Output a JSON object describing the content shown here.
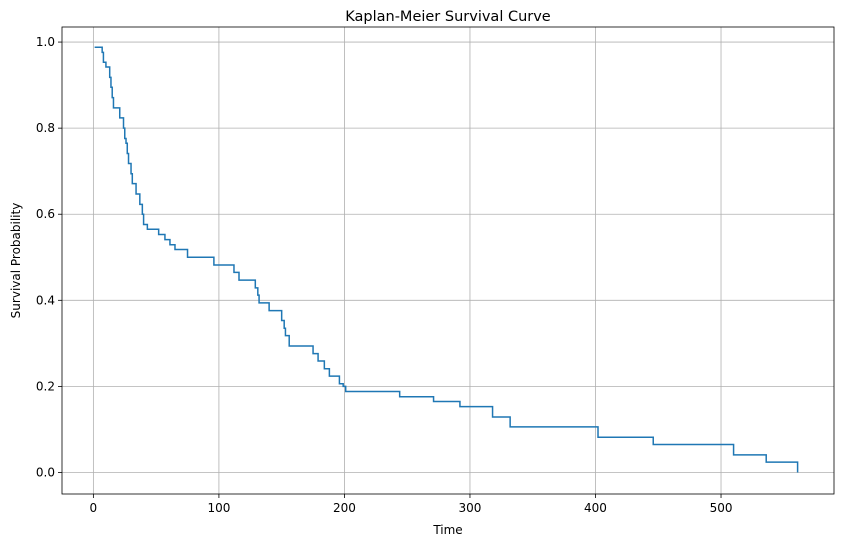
{
  "chart_data": {
    "type": "line",
    "step": "post",
    "title": "Kaplan-Meier Survival Curve",
    "xlabel": "Time",
    "ylabel": "Survival Probability",
    "xlim": [
      -25,
      590
    ],
    "ylim": [
      -0.05,
      1.035
    ],
    "xticks": [
      0,
      100,
      200,
      300,
      400,
      500
    ],
    "yticks": [
      0.0,
      0.2,
      0.4,
      0.6,
      0.8,
      1.0
    ],
    "xtick_labels": [
      "0",
      "100",
      "200",
      "300",
      "400",
      "500"
    ],
    "ytick_labels": [
      "0.0",
      "0.2",
      "0.4",
      "0.6",
      "0.8",
      "1.0"
    ],
    "grid": true,
    "series": [
      {
        "color": "#1f77b4",
        "x": [
          1,
          7,
          8,
          10,
          13,
          14,
          15,
          16,
          21,
          24,
          25,
          26,
          27,
          28,
          30,
          31,
          34,
          37,
          39,
          40,
          43,
          52,
          57,
          61,
          65,
          75,
          96,
          112,
          116,
          129,
          131,
          132,
          140,
          150,
          152,
          153,
          156,
          175,
          179,
          184,
          188,
          196,
          199,
          201,
          244,
          271,
          292,
          318,
          332,
          390,
          402,
          446,
          510,
          536,
          561
        ],
        "y": [
          0.988,
          0.976,
          0.953,
          0.942,
          0.918,
          0.895,
          0.871,
          0.847,
          0.824,
          0.8,
          0.776,
          0.765,
          0.741,
          0.718,
          0.694,
          0.671,
          0.647,
          0.623,
          0.6,
          0.576,
          0.565,
          0.553,
          0.541,
          0.529,
          0.518,
          0.5,
          0.482,
          0.465,
          0.447,
          0.429,
          0.412,
          0.394,
          0.376,
          0.353,
          0.335,
          0.318,
          0.294,
          0.276,
          0.259,
          0.241,
          0.224,
          0.206,
          0.2,
          0.188,
          0.176,
          0.165,
          0.153,
          0.129,
          0.106,
          0.106,
          0.082,
          0.065,
          0.041,
          0.024,
          0.0
        ]
      }
    ]
  }
}
